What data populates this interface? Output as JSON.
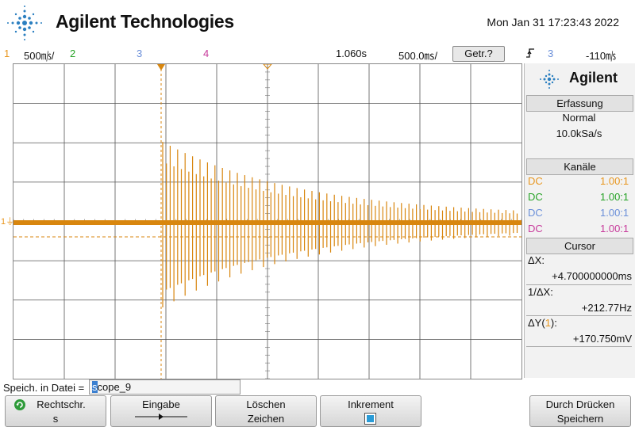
{
  "header": {
    "brand": "Agilent Technologies",
    "datetime": "Mon Jan 31 17:23:43 2022"
  },
  "status": {
    "ch1_num": "1",
    "ch1_scale": "500㎧/",
    "ch2_num": "2",
    "ch3_num": "3",
    "ch4_num": "4",
    "time_pos": "1.060s",
    "time_scale": "500.0㎳/",
    "trigger_mode": "Getr.?",
    "trigger_source": "3",
    "trigger_level": "-110㎧"
  },
  "panel": {
    "logo": "Agilent",
    "acq_title": "Erfassung",
    "acq_mode": "Normal",
    "acq_rate": "10.0kSa/s",
    "channels_title": "Kanäle",
    "channels": [
      {
        "coupling": "DC",
        "ratio": "1.00:1",
        "color": "#e8961e"
      },
      {
        "coupling": "DC",
        "ratio": "1.00:1",
        "color": "#27a327"
      },
      {
        "coupling": "DC",
        "ratio": "1.00:1",
        "color": "#6a8fd9"
      },
      {
        "coupling": "DC",
        "ratio": "1.00:1",
        "color": "#c73a9b"
      }
    ],
    "cursor_title": "Cursor",
    "dx_label": "ΔX:",
    "dx_value": "+4.700000000ms",
    "inv_dx_label": "1/ΔX:",
    "inv_dx_value": "+212.77Hz",
    "dy_label_prefix": "ΔY(",
    "dy_label_ch": "1",
    "dy_label_suffix": "):",
    "dy_value": "+170.750mV"
  },
  "display": {
    "ch1_marker": "1",
    "trace_color": "#d8860e",
    "ground_marker": "⏚"
  },
  "save": {
    "label": "Speich. in Datei =",
    "filename": "scope_9"
  },
  "softkeys": {
    "k1_top": "Rechtschr.",
    "k1_bottom": "s",
    "k2_top": "Eingabe",
    "k3_top": "Löschen",
    "k3_bottom": "Zeichen",
    "k4_top": "Inkrement",
    "k5_top": "Durch Drücken",
    "k5_bottom": "Speichern"
  },
  "colors": {
    "ch1": "#e8961e",
    "ch2": "#27a327",
    "ch3": "#6a8fd9",
    "ch4": "#c73a9b"
  }
}
